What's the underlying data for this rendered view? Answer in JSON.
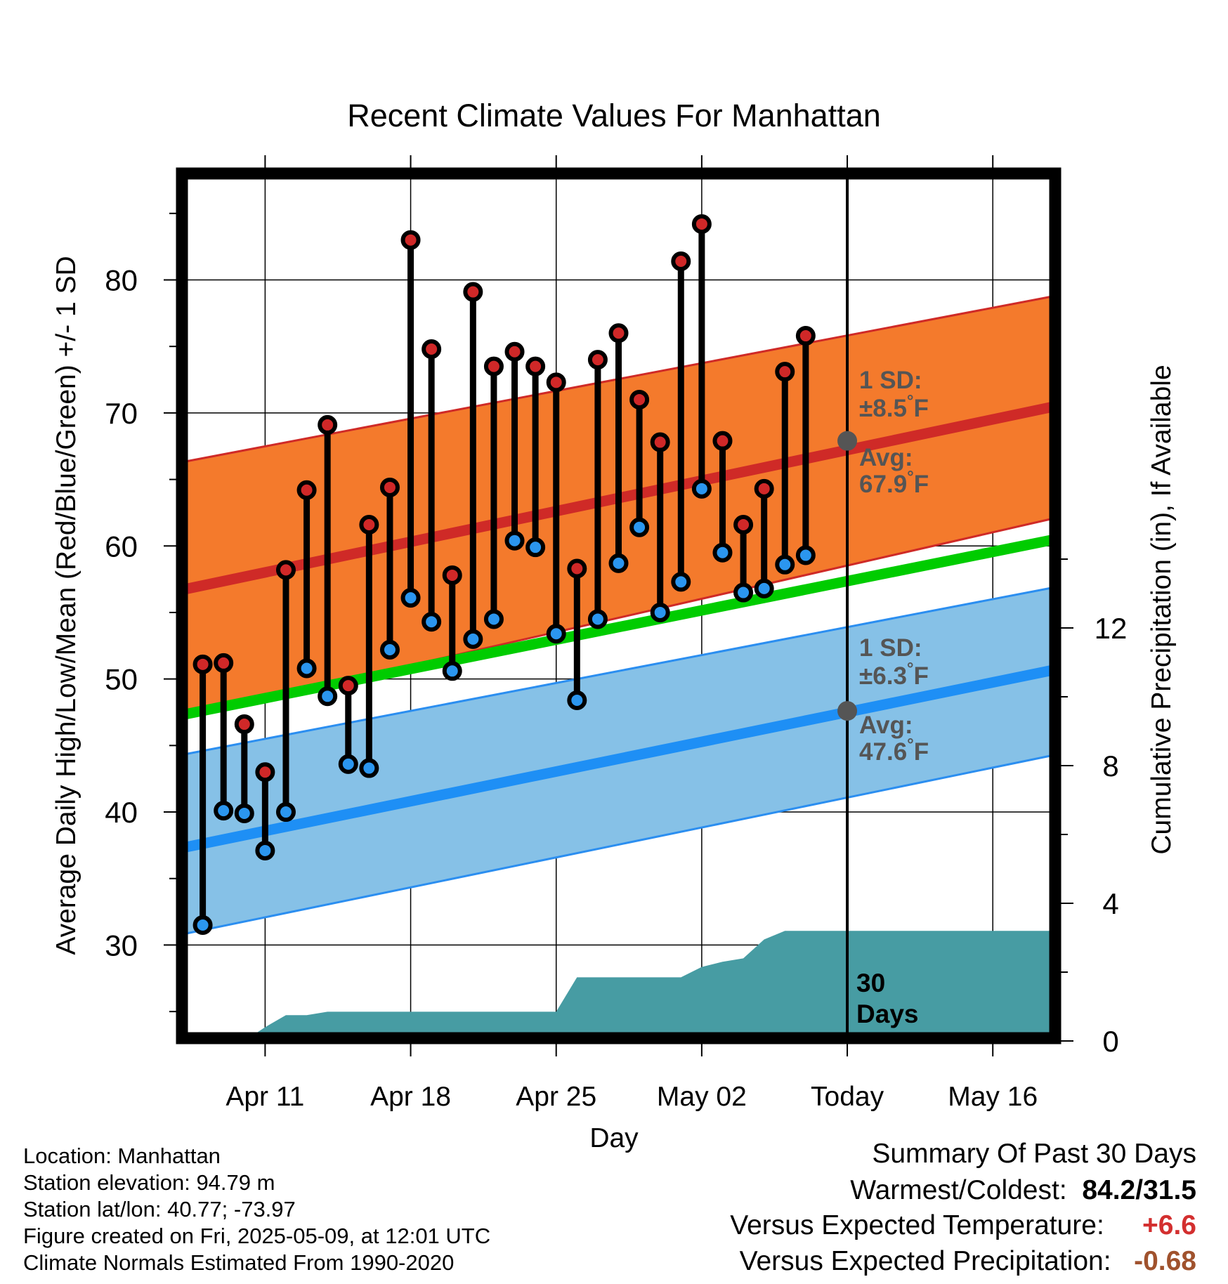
{
  "chart_data": {
    "type": "scatter",
    "title": "Recent Climate Values For Manhattan",
    "xlabel": "Day",
    "ylabel": "Average Daily High/Low/Mean (Red/Blue/Green) +/- 1 SD",
    "y2label": "Cumulative Precipitation (in), If Available",
    "ylim": [
      23,
      88
    ],
    "y2lim": [
      0,
      16
    ],
    "xlim": [
      "2025-04-07",
      "2025-05-19"
    ],
    "x_ticks": [
      {
        "date": "2025-04-11",
        "label": "Apr 11"
      },
      {
        "date": "2025-04-18",
        "label": "Apr 18"
      },
      {
        "date": "2025-04-25",
        "label": "Apr 25"
      },
      {
        "date": "2025-05-02",
        "label": "May 02"
      },
      {
        "date": "2025-05-09",
        "label": "Today"
      },
      {
        "date": "2025-05-16",
        "label": "May 16"
      }
    ],
    "y_ticks": [
      "30",
      "40",
      "50",
      "60",
      "70",
      "80"
    ],
    "y2_ticks": [
      "0",
      "4",
      "8",
      "12"
    ],
    "grid": true,
    "today_date": "2025-05-09",
    "period_label": [
      "30",
      "Days"
    ],
    "colors": {
      "high_band": "#f47a2c",
      "high_band_edge": "#cf2a27",
      "high_avg": "#cf2a27",
      "low_band": "#86c1e7",
      "low_band_edge": "#2b8ef0",
      "low_avg": "#1e8ff5",
      "mean": "#00cc00",
      "precip": "#479ca3",
      "high_dot": "#d02828",
      "low_dot": "#2b96ef",
      "annotation": "#555555",
      "warm": "#d32f2f",
      "precip_anomaly": "#a0522d"
    },
    "normals": {
      "dates": [
        "2025-04-07",
        "2025-05-19"
      ],
      "high_avg": [
        56.7,
        70.5
      ],
      "high_upper": [
        66.3,
        78.8
      ],
      "high_lower": [
        47.1,
        62.1
      ],
      "low_avg": [
        37.3,
        50.7
      ],
      "low_upper": [
        44.3,
        56.9
      ],
      "low_lower": [
        30.8,
        44.3
      ],
      "mean_avg": [
        47.3,
        60.5
      ]
    },
    "annotations": {
      "high": {
        "sd_label": "1 SD:",
        "sd_value": "±8.5",
        "avg_label": "Avg:",
        "avg_value": "67.9",
        "unit": "°F",
        "value": 67.9
      },
      "low": {
        "sd_label": "1 SD:",
        "sd_value": "±6.3",
        "avg_label": "Avg:",
        "avg_value": "47.6",
        "unit": "°F",
        "value": 47.6
      }
    },
    "series": [
      {
        "name": "High",
        "values": [
          51.1,
          51.2,
          46.6,
          43.0,
          58.2,
          64.2,
          69.1,
          49.5,
          61.6,
          64.4,
          83.0,
          74.8,
          57.8,
          79.1,
          73.5,
          74.6,
          73.5,
          72.3,
          58.3,
          74.0,
          76.0,
          71.0,
          67.8,
          81.4,
          84.2,
          67.9,
          61.6,
          64.3,
          73.1,
          75.8
        ]
      },
      {
        "name": "Low",
        "values": [
          31.5,
          40.1,
          39.9,
          37.1,
          40.0,
          50.8,
          48.7,
          43.6,
          43.3,
          52.2,
          56.1,
          54.3,
          50.6,
          53.0,
          54.5,
          60.4,
          59.9,
          53.4,
          48.4,
          54.5,
          58.7,
          61.4,
          55.0,
          57.3,
          64.3,
          59.5,
          56.5,
          56.8,
          58.6,
          59.3
        ]
      }
    ],
    "dates": [
      "2025-04-08",
      "2025-04-09",
      "2025-04-10",
      "2025-04-11",
      "2025-04-12",
      "2025-04-13",
      "2025-04-14",
      "2025-04-15",
      "2025-04-16",
      "2025-04-17",
      "2025-04-18",
      "2025-04-19",
      "2025-04-20",
      "2025-04-21",
      "2025-04-22",
      "2025-04-23",
      "2025-04-24",
      "2025-04-25",
      "2025-04-26",
      "2025-04-27",
      "2025-04-28",
      "2025-04-29",
      "2025-04-30",
      "2025-05-01",
      "2025-05-02",
      "2025-05-03",
      "2025-05-04",
      "2025-05-05",
      "2025-05-06",
      "2025-05-07"
    ],
    "precipitation": {
      "name": "Cumulative Precipitation",
      "dates": [
        "2025-04-09",
        "2025-04-10",
        "2025-04-11",
        "2025-04-12",
        "2025-04-13",
        "2025-04-14",
        "2025-04-25",
        "2025-04-26",
        "2025-05-01",
        "2025-05-02",
        "2025-05-03",
        "2025-05-04",
        "2025-05-05",
        "2025-05-06",
        "2025-05-19"
      ],
      "values": [
        0.0,
        0.0,
        0.4,
        0.75,
        0.75,
        0.85,
        0.85,
        1.85,
        1.85,
        2.15,
        2.3,
        2.4,
        2.95,
        3.2,
        3.2
      ]
    }
  },
  "station_info": [
    "Location: Manhattan",
    "Station elevation: 94.79 m",
    "Station lat/lon: 40.77; -73.97",
    "Figure created on Fri, 2025-05-09, at 12:01 UTC",
    "Climate Normals Estimated From 1990-2020"
  ],
  "summary": {
    "heading": "Summary Of Past 30 Days",
    "warmest_coldest_label": "Warmest/Coldest:",
    "warmest_coldest_value": "84.2/31.5",
    "temp_label": "Versus Expected Temperature:",
    "temp_value": "+6.6",
    "precip_label": "Versus Expected Precipitation:",
    "precip_value": "-0.68"
  }
}
